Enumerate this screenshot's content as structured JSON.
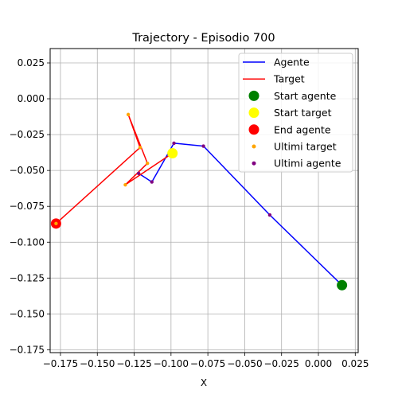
{
  "chart_data": {
    "type": "line",
    "title": "Trajectory - Episodio 700",
    "xlabel": "X",
    "ylabel": "",
    "xlim": [
      -0.182,
      0.027
    ],
    "ylim": [
      -0.177,
      0.035
    ],
    "x_ticks": [
      -0.175,
      -0.15,
      -0.125,
      -0.1,
      -0.075,
      -0.05,
      -0.025,
      0.0,
      0.025
    ],
    "x_tick_labels": [
      "−0.175",
      "−0.150",
      "−0.125",
      "−0.100",
      "−0.075",
      "−0.050",
      "−0.025",
      "0.000",
      "0.025"
    ],
    "y_ticks": [
      0.025,
      0.0,
      -0.025,
      -0.05,
      -0.075,
      -0.1,
      -0.125,
      -0.15,
      -0.175
    ],
    "y_tick_labels": [
      "0.025",
      "0.000",
      "−0.025",
      "−0.050",
      "−0.075",
      "−0.100",
      "−0.125",
      "−0.150",
      "−0.175"
    ],
    "grid": true,
    "legend_position": "top-right",
    "series": [
      {
        "name": "Agente",
        "kind": "line",
        "color": "#0000ff",
        "x": [
          0.016,
          -0.033,
          -0.078,
          -0.098,
          -0.113,
          -0.122
        ],
        "y": [
          -0.13,
          -0.081,
          -0.033,
          -0.031,
          -0.058,
          -0.052
        ]
      },
      {
        "name": "Target",
        "kind": "line",
        "color": "#ff0000",
        "x": [
          -0.099,
          -0.131,
          -0.116,
          -0.129,
          -0.121,
          -0.178
        ],
        "y": [
          -0.038,
          -0.06,
          -0.045,
          -0.011,
          -0.034,
          -0.087
        ]
      },
      {
        "name": "Start agente",
        "kind": "marker",
        "color": "#008000",
        "size": "large",
        "x": [
          0.016
        ],
        "y": [
          -0.13
        ]
      },
      {
        "name": "Start target",
        "kind": "marker",
        "color": "#ffff00",
        "size": "large",
        "x": [
          -0.099
        ],
        "y": [
          -0.038
        ]
      },
      {
        "name": "End agente",
        "kind": "marker",
        "color": "#ff0000",
        "size": "large",
        "x": [
          -0.178
        ],
        "y": [
          -0.087
        ]
      },
      {
        "name": "Ultimi target",
        "kind": "marker",
        "color": "#ffa500",
        "size": "small",
        "x": [
          -0.131,
          -0.116,
          -0.129,
          -0.121,
          -0.178
        ],
        "y": [
          -0.06,
          -0.045,
          -0.011,
          -0.034,
          -0.087
        ]
      },
      {
        "name": "Ultimi agente",
        "kind": "marker",
        "color": "#800080",
        "size": "small",
        "x": [
          -0.033,
          -0.078,
          -0.098,
          -0.113,
          -0.122
        ],
        "y": [
          -0.081,
          -0.033,
          -0.031,
          -0.058,
          -0.052
        ]
      }
    ]
  }
}
